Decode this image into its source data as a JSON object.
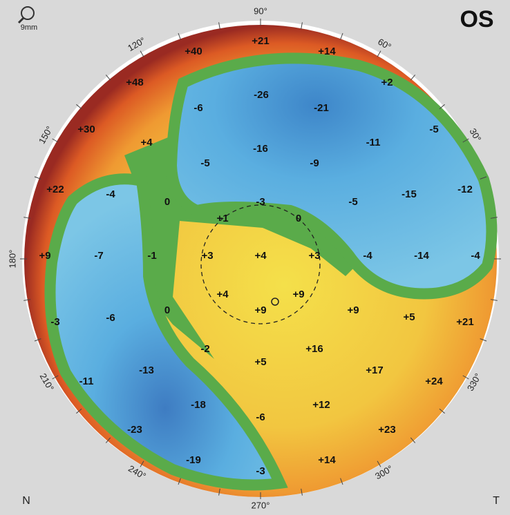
{
  "eye": "OS",
  "scale": "9mm",
  "orientation": {
    "nasal": "N",
    "temporal": "T"
  },
  "angle_labels": [
    "90°",
    "60°",
    "30°",
    "180°",
    "120°",
    "150°",
    "210°",
    "240°",
    "270°",
    "300°",
    "330°"
  ],
  "values": [
    "+21",
    "+40",
    "+14",
    "+48",
    "+2",
    "-26",
    "-6",
    "-21",
    "+30",
    "-5",
    "+4",
    "-16",
    "-11",
    "-5",
    "-9",
    "+22",
    "-4",
    "0",
    "-3",
    "-5",
    "-15",
    "-12",
    "+1",
    "0",
    "+9",
    "-7",
    "-1",
    "+3",
    "+4",
    "+3",
    "-4",
    "-14",
    "-4",
    "+4",
    "+9",
    "+9",
    "0",
    "+9",
    "+5",
    "+21",
    "-3",
    "-6",
    "-2",
    "+5",
    "+16",
    "-11",
    "-13",
    "+17",
    "+24",
    "-18",
    "+12",
    "-6",
    "-23",
    "+23",
    "-19",
    "+14",
    "-3"
  ]
}
